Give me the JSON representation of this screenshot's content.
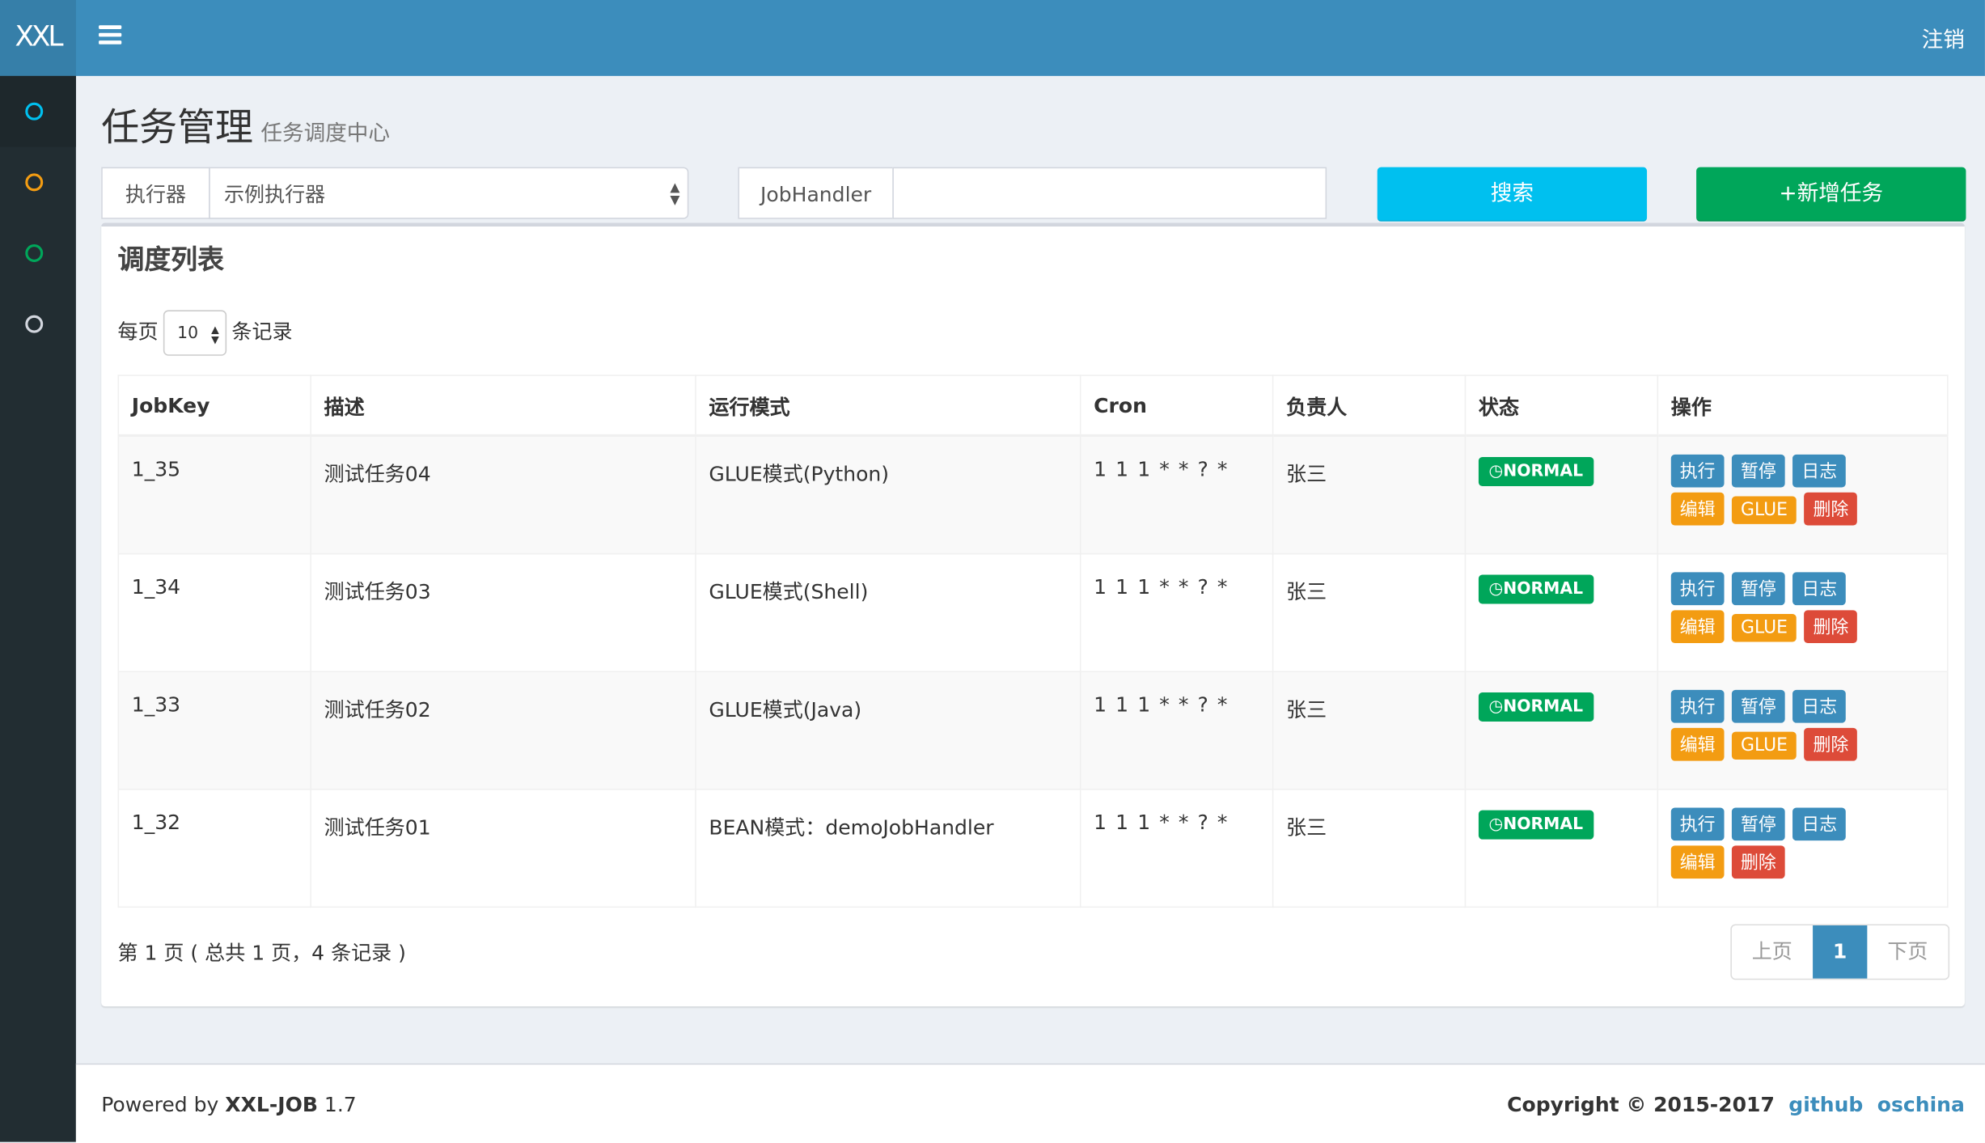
{
  "header": {
    "logo": "XXL",
    "logout": "注销"
  },
  "sidebar": {
    "items": [
      {
        "icon": "circle-icon",
        "color": "#00c0ef"
      },
      {
        "icon": "circle-icon",
        "color": "#f39c12"
      },
      {
        "icon": "circle-icon",
        "color": "#00a65a"
      },
      {
        "icon": "circle-icon",
        "color": "#d2d6de"
      }
    ]
  },
  "page": {
    "title": "任务管理",
    "subtitle": "任务调度中心"
  },
  "filters": {
    "executor_label": "执行器",
    "executor_value": "示例执行器",
    "jobhandler_label": "JobHandler",
    "jobhandler_value": "",
    "search": "搜索",
    "add": "+新增任务"
  },
  "box": {
    "title": "调度列表",
    "per_page_prefix": "每页",
    "per_page": "10",
    "per_page_suffix": "条记录"
  },
  "table": {
    "headers": [
      "JobKey",
      "描述",
      "运行模式",
      "Cron",
      "负责人",
      "状态",
      "操作"
    ],
    "rows": [
      {
        "key": "1_35",
        "desc": "测试任务04",
        "mode": "GLUE模式(Python)",
        "cron": "1 1 1 * * ? *",
        "owner": "张三",
        "status": "NORMAL",
        "glue": true
      },
      {
        "key": "1_34",
        "desc": "测试任务03",
        "mode": "GLUE模式(Shell)",
        "cron": "1 1 1 * * ? *",
        "owner": "张三",
        "status": "NORMAL",
        "glue": true
      },
      {
        "key": "1_33",
        "desc": "测试任务02",
        "mode": "GLUE模式(Java)",
        "cron": "1 1 1 * * ? *",
        "owner": "张三",
        "status": "NORMAL",
        "glue": true
      },
      {
        "key": "1_32",
        "desc": "测试任务01",
        "mode": "BEAN模式：demoJobHandler",
        "cron": "1 1 1 * * ? *",
        "owner": "张三",
        "status": "NORMAL",
        "glue": false
      }
    ],
    "actions": {
      "run": "执行",
      "pause": "暂停",
      "log": "日志",
      "edit": "编辑",
      "glue": "GLUE",
      "delete": "删除"
    }
  },
  "pagination": {
    "info": "第 1 页 ( 总共 1 页，4 条记录 )",
    "prev": "上页",
    "current": "1",
    "next": "下页"
  },
  "footer": {
    "powered_prefix": "Powered by ",
    "product": "XXL-JOB",
    "version": " 1.7",
    "copyright": "Copyright © 2015-2017",
    "github": "github",
    "oschina": "oschina"
  }
}
